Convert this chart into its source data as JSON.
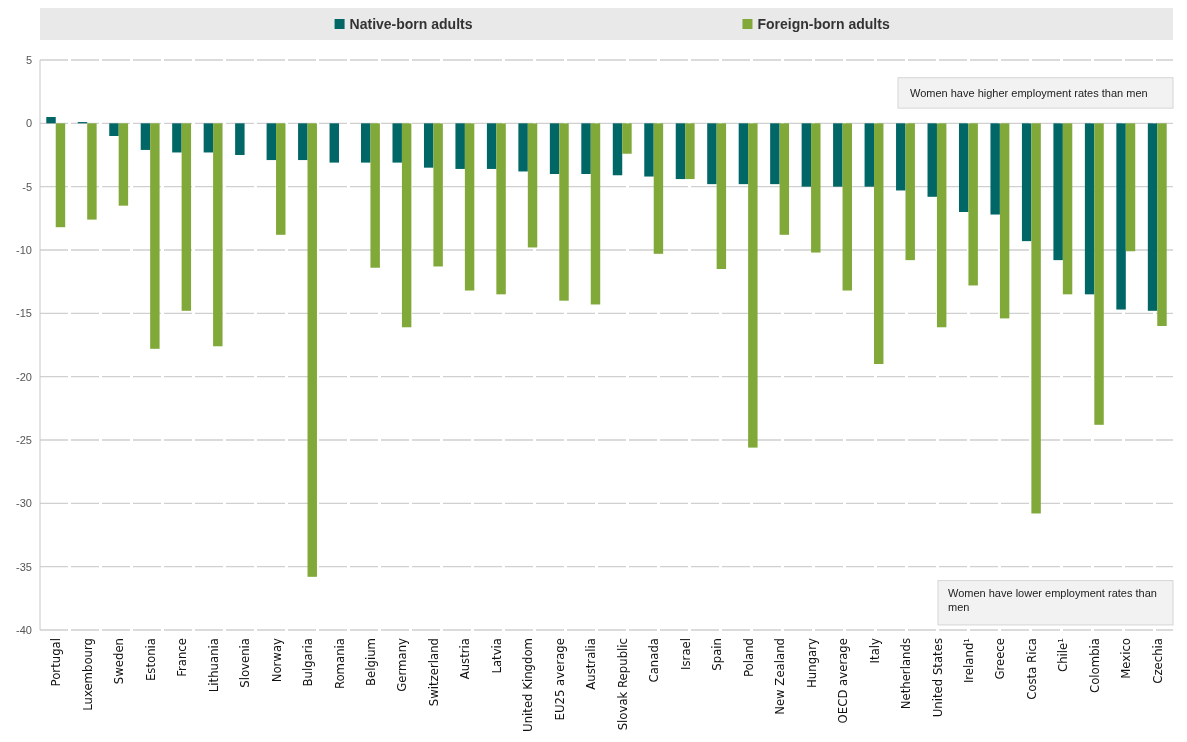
{
  "chart_data": {
    "type": "bar",
    "categories": [
      "Portugal",
      "Luxembourg",
      "Sweden",
      "Estonia",
      "France",
      "Lithuania",
      "Slovenia",
      "Norway",
      "Bulgaria",
      "Romania",
      "Belgium",
      "Germany",
      "Switzerland",
      "Austria",
      "Latvia",
      "United Kingdom",
      "EU25 average",
      "Australia",
      "Slovak Republic",
      "Canada",
      "Israel",
      "Spain",
      "Poland",
      "New Zealand",
      "Hungary",
      "OECD average",
      "Italy",
      "Netherlands",
      "United States",
      "Ireland¹",
      "Greece",
      "Costa Rica",
      "Chile¹",
      "Colombia",
      "Mexico",
      "Czechia"
    ],
    "series": [
      {
        "name": "Native-born adults",
        "color": "#006666",
        "values": [
          0.5,
          0.1,
          -1.0,
          -2.1,
          -2.3,
          -2.3,
          -2.5,
          -2.9,
          -2.9,
          -3.1,
          -3.1,
          -3.1,
          -3.5,
          -3.6,
          -3.6,
          -3.8,
          -4.0,
          -4.0,
          -4.1,
          -4.2,
          -4.4,
          -4.8,
          -4.8,
          -4.8,
          -5.0,
          -5.0,
          -5.0,
          -5.3,
          -5.8,
          -7.0,
          -7.2,
          -9.3,
          -10.8,
          -13.5,
          -14.7,
          -14.8
        ]
      },
      {
        "name": "Foreign-born adults",
        "color": "#80a93a",
        "values": [
          -8.2,
          -7.6,
          -6.5,
          -17.8,
          -14.8,
          -17.6,
          null,
          -8.8,
          -35.8,
          null,
          -11.4,
          -16.1,
          -11.3,
          -13.2,
          -13.5,
          -9.8,
          -14.0,
          -14.3,
          -2.4,
          -10.3,
          -4.4,
          -11.5,
          -25.6,
          -8.8,
          -10.2,
          -13.2,
          -19.0,
          -10.8,
          -16.1,
          -12.8,
          -15.4,
          -30.8,
          -13.5,
          -23.8,
          -10.1,
          -16.0
        ]
      }
    ],
    "ylim": [
      -40,
      5
    ],
    "yticks": [
      -40,
      -35,
      -30,
      -25,
      -20,
      -15,
      -10,
      -5,
      0,
      5
    ],
    "grid": "y",
    "legend": "top",
    "annotations": [
      "Women have higher employment rates than men",
      "Women have lower employment rates than men"
    ]
  }
}
